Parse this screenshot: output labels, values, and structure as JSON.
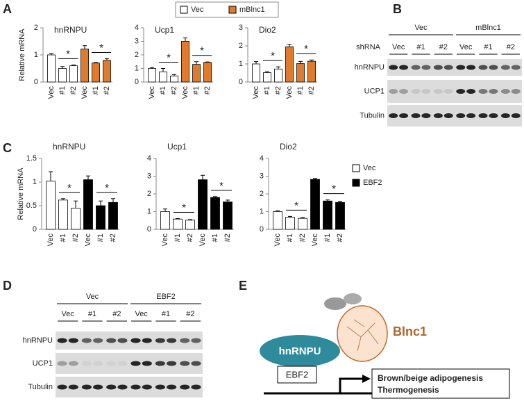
{
  "panel_labels": [
    "A",
    "B",
    "C",
    "D",
    "E"
  ],
  "chart_data": [
    {
      "type": "bar",
      "title": "hnRNPU",
      "ylabel": "Relative mRNA",
      "categories": [
        "Vec",
        "#1",
        "#2",
        "Vec",
        "#1",
        "#2"
      ],
      "values": [
        1.0,
        0.5,
        0.6,
        1.22,
        0.7,
        0.8
      ],
      "errors": [
        0.05,
        0.07,
        0.03,
        0.12,
        0.02,
        0.06
      ],
      "colors": [
        "#ffffff",
        "#ffffff",
        "#ffffff",
        "#e07a2c",
        "#e07a2c",
        "#e07a2c"
      ],
      "ylim": [
        0,
        2
      ],
      "yticks": [
        0,
        1,
        2
      ],
      "annotations": [
        "*",
        "*"
      ]
    },
    {
      "type": "bar",
      "title": "Ucp1",
      "categories": [
        "Vec",
        "#1",
        "#2",
        "Vec",
        "#1",
        "#2"
      ],
      "values": [
        1.0,
        0.75,
        0.45,
        3.0,
        1.3,
        1.45
      ],
      "errors": [
        0.08,
        0.25,
        0.1,
        0.25,
        0.2,
        0.03
      ],
      "colors": [
        "#ffffff",
        "#ffffff",
        "#ffffff",
        "#e07a2c",
        "#e07a2c",
        "#e07a2c"
      ],
      "ylim": [
        0,
        4
      ],
      "yticks": [
        0,
        1,
        2,
        3,
        4
      ],
      "annotations": [
        "*",
        "*"
      ]
    },
    {
      "type": "bar",
      "title": "Dio2",
      "categories": [
        "Vec",
        "#1",
        "#2",
        "Vec",
        "#1",
        "#2"
      ],
      "values": [
        1.0,
        0.52,
        0.72,
        1.95,
        1.02,
        1.15
      ],
      "errors": [
        0.13,
        0.05,
        0.12,
        0.12,
        0.12,
        0.07
      ],
      "colors": [
        "#ffffff",
        "#ffffff",
        "#ffffff",
        "#e07a2c",
        "#e07a2c",
        "#e07a2c"
      ],
      "ylim": [
        0,
        3
      ],
      "yticks": [
        0,
        1,
        2,
        3
      ],
      "annotations": [
        "*",
        "*"
      ]
    },
    {
      "type": "bar",
      "title": "hnRNPU",
      "ylabel": "Relative mRNA",
      "categories": [
        "Vec",
        "#1",
        "#2",
        "Vec",
        "#1",
        "#2"
      ],
      "values": [
        1.02,
        0.62,
        0.45,
        1.05,
        0.5,
        0.57
      ],
      "errors": [
        0.2,
        0.03,
        0.15,
        0.08,
        0.1,
        0.08
      ],
      "colors": [
        "#ffffff",
        "#ffffff",
        "#ffffff",
        "#000000",
        "#000000",
        "#000000"
      ],
      "ylim": [
        0,
        1.5
      ],
      "yticks": [
        0,
        0.5,
        1,
        1.5
      ],
      "annotations": [
        "*",
        "*"
      ]
    },
    {
      "type": "bar",
      "title": "Ucp1",
      "categories": [
        "Vec",
        "#1",
        "#2",
        "Vec",
        "#1",
        "#2"
      ],
      "values": [
        1.0,
        0.58,
        0.52,
        2.8,
        1.8,
        1.55
      ],
      "errors": [
        0.15,
        0.03,
        0.03,
        0.25,
        0.05,
        0.1
      ],
      "colors": [
        "#ffffff",
        "#ffffff",
        "#ffffff",
        "#000000",
        "#000000",
        "#000000"
      ],
      "ylim": [
        0,
        4
      ],
      "yticks": [
        0,
        1,
        2,
        3,
        4
      ],
      "annotations": [
        "*",
        "*"
      ]
    },
    {
      "type": "bar",
      "title": "Dio2",
      "categories": [
        "Vec",
        "#1",
        "#2",
        "Vec",
        "#1",
        "#2"
      ],
      "values": [
        1.0,
        0.68,
        0.62,
        2.82,
        1.6,
        1.52
      ],
      "errors": [
        0.05,
        0.05,
        0.05,
        0.05,
        0.06,
        0.06
      ],
      "colors": [
        "#ffffff",
        "#ffffff",
        "#ffffff",
        "#000000",
        "#000000",
        "#000000"
      ],
      "ylim": [
        0,
        4
      ],
      "yticks": [
        0,
        1,
        2,
        3,
        4
      ],
      "annotations": [
        "*",
        "*"
      ]
    }
  ],
  "legends": [
    {
      "entries": [
        {
          "name": "Vec",
          "color": "#ffffff"
        },
        {
          "name": "mBlnc1",
          "color": "#e07a2c"
        }
      ]
    },
    {
      "entries": [
        {
          "name": "Vec",
          "color": "#ffffff"
        },
        {
          "name": "EBF2",
          "color": "#000000"
        }
      ]
    }
  ],
  "blots": [
    {
      "groups": [
        "Vec",
        "mBlnc1"
      ],
      "lane_label": "shRNA",
      "lanes": [
        "Vec",
        "#1",
        "#2",
        "Vec",
        "#1",
        "#2"
      ],
      "rows": [
        "hnRNPU",
        "UCP1",
        "Tubulin"
      ]
    },
    {
      "groups": [
        "Vec",
        "EBF2"
      ],
      "lanes": [
        "Vec",
        "#1",
        "#2",
        "Vec",
        "#1",
        "#2"
      ],
      "rows": [
        "hnRNPU",
        "UCP1",
        "Tubulin"
      ]
    }
  ],
  "diagram": {
    "protein": "hnRNPU",
    "rna": "Blnc1",
    "factor": "EBF2",
    "targets": [
      "Brown/beige adipogenesis",
      "Thermogenesis"
    ]
  }
}
